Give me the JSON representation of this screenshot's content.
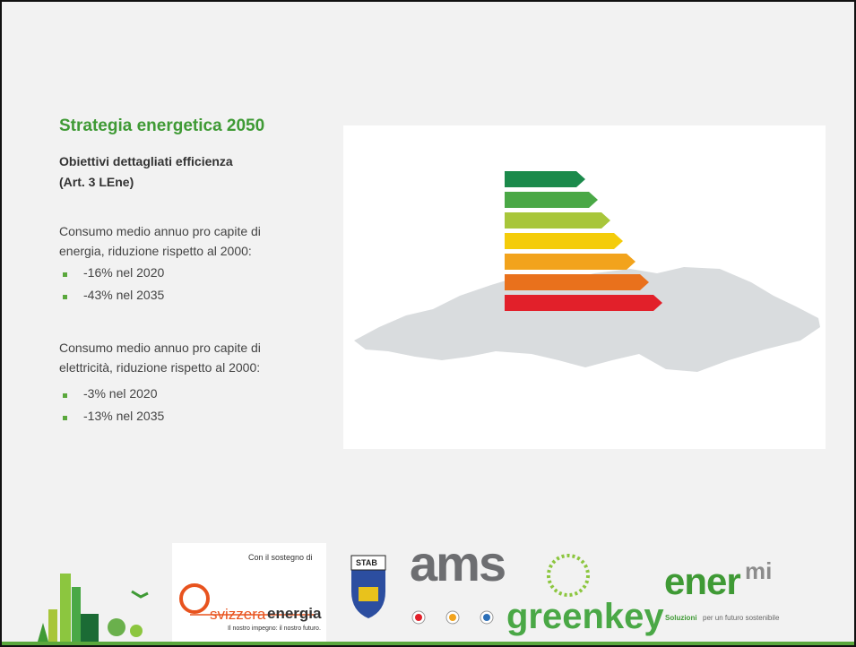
{
  "slide": {
    "title": "Strategia energetica 2050",
    "subtitle_lines": [
      "Obiettivi dettagliati efficienza",
      "(Art. 3 LEne)"
    ],
    "sections": [
      {
        "intro_lines": [
          "Consumo medio annuo pro capite di",
          "energia, riduzione rispetto al 2000:"
        ],
        "bullets": [
          "-16% nel 2020",
          "-43% nel 2035"
        ]
      },
      {
        "intro_lines": [
          "Consumo medio annuo pro capite di",
          "elettricità, riduzione rispetto al 2000:"
        ],
        "bullets": [
          "-3% nel 2020",
          "-13% nel 2035"
        ]
      }
    ]
  },
  "footer": {
    "sponsor_caption": "Con il sostegno di",
    "svizzera": {
      "light": "svizzera",
      "bold": "energia",
      "tagline": "Il nostro impegno: il nostro futuro."
    },
    "stab": "STAB",
    "ams": "ams",
    "greenkey": "greenkey",
    "enermi": {
      "main": "ener",
      "sup": "mi",
      "tag_bold": "Soluzioni",
      "tag_rest": "per un futuro sostenibile"
    }
  }
}
